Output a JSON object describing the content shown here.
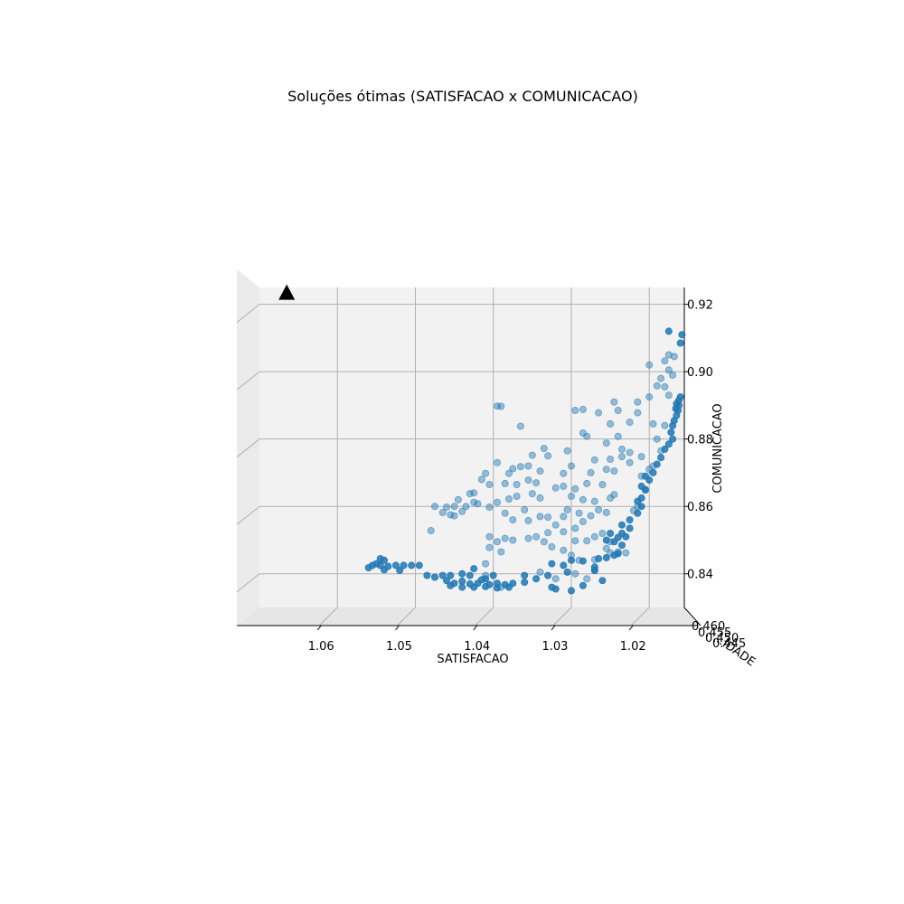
{
  "chart_data": {
    "type": "scatter",
    "title": "Soluções ótimas (SATISFACAO x COMUNICACAO)",
    "xlabel": "SATISFACAO",
    "ylabel": "COMUNICACAO",
    "zlabel": "...IDADE",
    "xlim": [
      1.0155,
      1.07
    ],
    "ylim": [
      0.83,
      0.925
    ],
    "x_ticks": [
      1.06,
      1.05,
      1.04,
      1.03,
      1.02
    ],
    "y_ticks": [
      0.84,
      0.86,
      0.88,
      0.9,
      0.92
    ],
    "x_tick_labels": [
      "1.06",
      "1.05",
      "1.04",
      "1.03",
      "1.02"
    ],
    "y_tick_labels": [
      "0.84",
      "0.86",
      "0.88",
      "0.90",
      "0.92"
    ],
    "z_tick_labels": [
      "0.460",
      "0.455",
      "0.450",
      "0.445"
    ],
    "grid": true,
    "marker_color": "#1f77b4",
    "marker_special": {
      "shape": "triangle",
      "color": "#000000",
      "x": 1.0665,
      "y": 0.9235
    },
    "series": [
      {
        "depth": "back",
        "points": [
          [
            1.0395,
            0.8898
          ],
          [
            1.039,
            0.8897
          ],
          [
            1.0365,
            0.8838
          ],
          [
            1.0295,
            0.8885
          ],
          [
            1.0285,
            0.8888
          ],
          [
            1.0265,
            0.8878
          ],
          [
            1.0245,
            0.891
          ],
          [
            1.024,
            0.8885
          ],
          [
            1.0215,
            0.8878
          ],
          [
            1.0225,
            0.885
          ],
          [
            1.025,
            0.8845
          ],
          [
            1.028,
            0.8808
          ],
          [
            1.024,
            0.8808
          ],
          [
            1.019,
            0.88
          ],
          [
            1.0195,
            0.8845
          ],
          [
            1.0215,
            0.891
          ],
          [
            1.02,
            0.8925
          ],
          [
            1.019,
            0.8958
          ],
          [
            1.0175,
            0.9005
          ],
          [
            1.02,
            0.902
          ],
          [
            1.018,
            0.9032
          ],
          [
            1.0175,
            0.905
          ],
          [
            1.0168,
            0.9045
          ],
          [
            1.017,
            0.899
          ],
          [
            1.0185,
            0.898
          ],
          [
            1.018,
            0.8955
          ],
          [
            1.0175,
            0.893
          ],
          [
            1.0285,
            0.8818
          ],
          [
            1.0255,
            0.8788
          ],
          [
            1.0235,
            0.877
          ],
          [
            1.0225,
            0.876
          ],
          [
            1.021,
            0.8748
          ],
          [
            1.0305,
            0.8765
          ],
          [
            1.0335,
            0.8772
          ],
          [
            1.033,
            0.875
          ],
          [
            1.035,
            0.8752
          ],
          [
            1.0355,
            0.872
          ],
          [
            1.0365,
            0.8718
          ],
          [
            1.0375,
            0.8712
          ],
          [
            1.038,
            0.8698
          ],
          [
            1.0395,
            0.873
          ],
          [
            1.041,
            0.8698
          ],
          [
            1.0415,
            0.868
          ],
          [
            1.0405,
            0.8665
          ],
          [
            1.0385,
            0.8668
          ],
          [
            1.037,
            0.8665
          ],
          [
            1.0355,
            0.8678
          ],
          [
            1.034,
            0.8705
          ],
          [
            1.0345,
            0.867
          ],
          [
            1.035,
            0.8638
          ],
          [
            1.034,
            0.8625
          ],
          [
            1.032,
            0.8655
          ],
          [
            1.031,
            0.866
          ],
          [
            1.0295,
            0.8652
          ],
          [
            1.028,
            0.8668
          ],
          [
            1.026,
            0.8665
          ],
          [
            1.031,
            0.8698
          ],
          [
            1.03,
            0.872
          ],
          [
            1.027,
            0.8738
          ],
          [
            1.025,
            0.874
          ],
          [
            1.0235,
            0.8748
          ],
          [
            1.0225,
            0.873
          ],
          [
            1.0255,
            0.871
          ],
          [
            1.0245,
            0.8705
          ],
          [
            1.0275,
            0.87
          ],
          [
            1.0285,
            0.862
          ],
          [
            1.027,
            0.8615
          ],
          [
            1.025,
            0.8625
          ],
          [
            1.0245,
            0.8635
          ],
          [
            1.03,
            0.863
          ],
          [
            1.037,
            0.863
          ],
          [
            1.038,
            0.8622
          ],
          [
            1.0425,
            0.864
          ],
          [
            1.043,
            0.8638
          ],
          [
            1.0445,
            0.862
          ],
          [
            1.045,
            0.86
          ],
          [
            1.046,
            0.8598
          ],
          [
            1.0475,
            0.86
          ],
          [
            1.0465,
            0.8582
          ],
          [
            1.0455,
            0.8575
          ],
          [
            1.045,
            0.8572
          ],
          [
            1.044,
            0.8585
          ],
          [
            1.0435,
            0.86
          ],
          [
            1.0425,
            0.8612
          ],
          [
            1.042,
            0.8608
          ],
          [
            1.0405,
            0.8598
          ],
          [
            1.0395,
            0.8612
          ],
          [
            1.0385,
            0.858
          ],
          [
            1.0375,
            0.856
          ],
          [
            1.036,
            0.859
          ],
          [
            1.0355,
            0.8558
          ],
          [
            1.034,
            0.857
          ],
          [
            1.033,
            0.8568
          ],
          [
            1.032,
            0.8545
          ],
          [
            1.031,
            0.857
          ],
          [
            1.0305,
            0.859
          ],
          [
            1.029,
            0.858
          ],
          [
            1.0275,
            0.8572
          ],
          [
            1.0265,
            0.859
          ],
          [
            1.0255,
            0.8582
          ],
          [
            1.0285,
            0.8555
          ],
          [
            1.0295,
            0.8535
          ],
          [
            1.031,
            0.8525
          ],
          [
            1.033,
            0.8522
          ],
          [
            1.0345,
            0.851
          ],
          [
            1.0355,
            0.8505
          ],
          [
            1.0375,
            0.85
          ],
          [
            1.0385,
            0.8505
          ],
          [
            1.0405,
            0.851
          ],
          [
            1.0395,
            0.8495
          ],
          [
            1.0405,
            0.8478
          ],
          [
            1.039,
            0.8465
          ],
          [
            1.0335,
            0.8495
          ],
          [
            1.0325,
            0.848
          ],
          [
            1.031,
            0.847
          ],
          [
            1.0295,
            0.8498
          ],
          [
            1.028,
            0.8498
          ],
          [
            1.027,
            0.851
          ],
          [
            1.026,
            0.852
          ],
          [
            1.025,
            0.8495
          ],
          [
            1.048,
            0.8528
          ],
          [
            1.03,
            0.8455
          ],
          [
            1.029,
            0.844
          ],
          [
            1.027,
            0.8442
          ],
          [
            1.025,
            0.8462
          ],
          [
            1.024,
            0.8465
          ],
          [
            1.041,
            0.843
          ],
          [
            1.041,
            0.8395
          ],
          [
            1.039,
            0.836
          ],
          [
            1.034,
            0.8405
          ],
          [
            1.032,
            0.8385
          ],
          [
            1.0295,
            0.84
          ],
          [
            1.027,
            0.841
          ],
          [
            1.028,
            0.8385
          ],
          [
            1.0255,
            0.8475
          ],
          [
            1.023,
            0.8462
          ],
          [
            1.0215,
            0.86
          ],
          [
            1.022,
            0.8588
          ],
          [
            1.0205,
            0.8648
          ],
          [
            1.021,
            0.869
          ],
          [
            1.02,
            0.871
          ],
          [
            1.0195,
            0.872
          ],
          [
            1.0185,
            0.8765
          ],
          [
            1.018,
            0.884
          ]
        ]
      },
      {
        "depth": "front",
        "points": [
          [
            1.0545,
            0.8445
          ],
          [
            1.054,
            0.844
          ],
          [
            1.055,
            0.843
          ],
          [
            1.0555,
            0.8425
          ],
          [
            1.0545,
            0.8425
          ],
          [
            1.0535,
            0.8422
          ],
          [
            1.0525,
            0.8425
          ],
          [
            1.0515,
            0.8425
          ],
          [
            1.0505,
            0.8425
          ],
          [
            1.0495,
            0.8425
          ],
          [
            1.056,
            0.8418
          ],
          [
            1.054,
            0.8412
          ],
          [
            1.052,
            0.841
          ],
          [
            1.0485,
            0.8395
          ],
          [
            1.0475,
            0.839
          ],
          [
            1.0465,
            0.8395
          ],
          [
            1.0455,
            0.8395
          ],
          [
            1.046,
            0.838
          ],
          [
            1.045,
            0.8372
          ],
          [
            1.044,
            0.8378
          ],
          [
            1.043,
            0.837
          ],
          [
            1.042,
            0.8372
          ],
          [
            1.0405,
            0.8368
          ],
          [
            1.0395,
            0.8372
          ],
          [
            1.0385,
            0.8368
          ],
          [
            1.0375,
            0.8372
          ],
          [
            1.036,
            0.8375
          ],
          [
            1.044,
            0.84
          ],
          [
            1.0425,
            0.8415
          ],
          [
            1.043,
            0.8395
          ],
          [
            1.0415,
            0.8382
          ],
          [
            1.04,
            0.8395
          ],
          [
            1.041,
            0.8385
          ],
          [
            1.0455,
            0.8365
          ],
          [
            1.044,
            0.836
          ],
          [
            1.0425,
            0.836
          ],
          [
            1.041,
            0.8362
          ],
          [
            1.0395,
            0.8358
          ],
          [
            1.038,
            0.836
          ],
          [
            1.036,
            0.8395
          ],
          [
            1.0345,
            0.8385
          ],
          [
            1.033,
            0.8395
          ],
          [
            1.0325,
            0.836
          ],
          [
            1.032,
            0.8355
          ],
          [
            1.0305,
            0.8405
          ],
          [
            1.031,
            0.8425
          ],
          [
            1.0325,
            0.843
          ],
          [
            1.03,
            0.844
          ],
          [
            1.0285,
            0.8438
          ],
          [
            1.027,
            0.841
          ],
          [
            1.0265,
            0.8445
          ],
          [
            1.0255,
            0.8448
          ],
          [
            1.0245,
            0.8455
          ],
          [
            1.024,
            0.846
          ],
          [
            1.0235,
            0.8485
          ],
          [
            1.0245,
            0.8495
          ],
          [
            1.0255,
            0.85
          ],
          [
            1.024,
            0.8508
          ],
          [
            1.025,
            0.852
          ],
          [
            1.0235,
            0.852
          ],
          [
            1.023,
            0.851
          ],
          [
            1.0225,
            0.8535
          ],
          [
            1.0235,
            0.8545
          ],
          [
            1.0225,
            0.856
          ],
          [
            1.0215,
            0.858
          ],
          [
            1.021,
            0.86
          ],
          [
            1.0215,
            0.8615
          ],
          [
            1.021,
            0.8625
          ],
          [
            1.0205,
            0.865
          ],
          [
            1.021,
            0.866
          ],
          [
            1.02,
            0.8678
          ],
          [
            1.0205,
            0.869
          ],
          [
            1.0195,
            0.87
          ],
          [
            1.019,
            0.8725
          ],
          [
            1.0185,
            0.8745
          ],
          [
            1.018,
            0.877
          ],
          [
            1.0175,
            0.8785
          ],
          [
            1.017,
            0.88
          ],
          [
            1.0172,
            0.882
          ],
          [
            1.017,
            0.884
          ],
          [
            1.0168,
            0.8855
          ],
          [
            1.0165,
            0.887
          ],
          [
            1.0163,
            0.8885
          ],
          [
            1.0162,
            0.89
          ],
          [
            1.0162,
            0.8915
          ],
          [
            1.016,
            0.8925
          ],
          [
            1.0165,
            0.8905
          ],
          [
            1.0166,
            0.889
          ],
          [
            1.016,
            0.9085
          ],
          [
            1.0158,
            0.911
          ],
          [
            1.0175,
            0.912
          ],
          [
            1.027,
            0.842
          ],
          [
            1.026,
            0.838
          ],
          [
            1.0285,
            0.8365
          ],
          [
            1.03,
            0.835
          ]
        ]
      }
    ]
  }
}
